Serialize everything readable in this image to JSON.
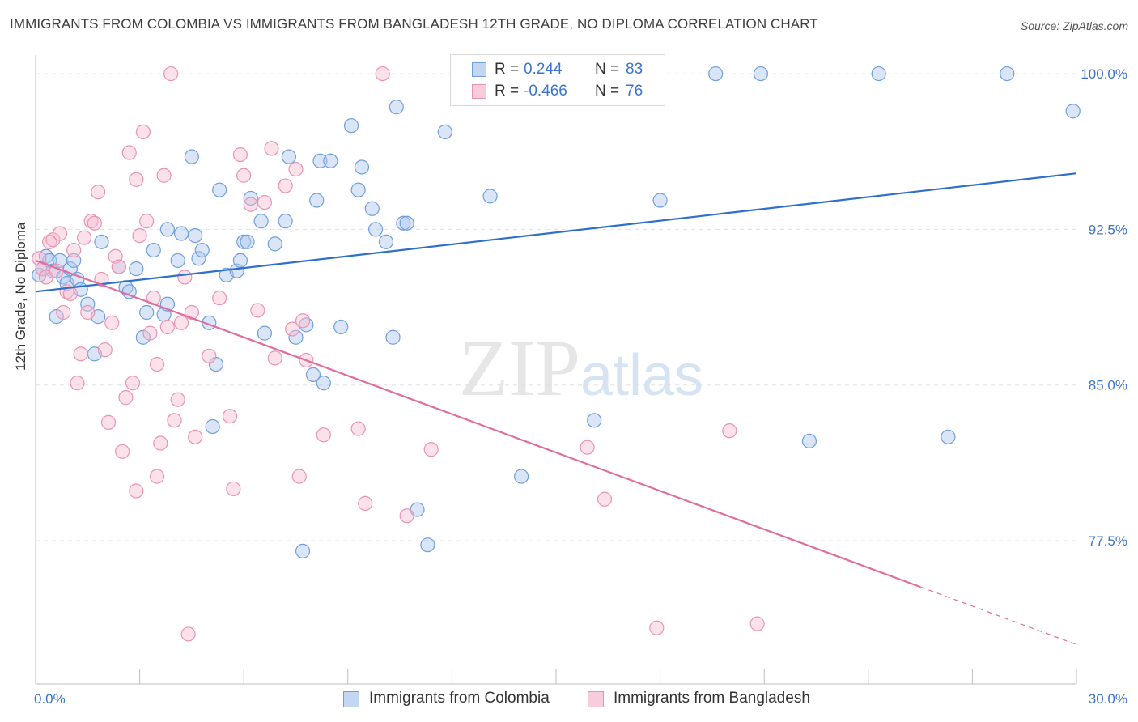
{
  "header": {
    "title": "IMMIGRANTS FROM COLOMBIA VS IMMIGRANTS FROM BANGLADESH 12TH GRADE, NO DIPLOMA CORRELATION CHART",
    "source": "Source: ZipAtlas.com"
  },
  "watermark": "ZIPatlas",
  "legend_top": {
    "colombia": {
      "r_label": "R =",
      "r_value": "0.244",
      "n_label": "N =",
      "n_value": "83"
    },
    "bangladesh": {
      "r_label": "R =",
      "r_value": "-0.466",
      "n_label": "N =",
      "n_value": "76"
    }
  },
  "legend_bottom": {
    "colombia": "Immigrants from Colombia",
    "bangladesh": "Immigrants from Bangladesh"
  },
  "colors": {
    "colombia_fill": "#aec8ee",
    "colombia_stroke": "#6f9fdc",
    "colombia_line": "#2f6fcc",
    "bangladesh_fill": "#f6bcd0",
    "bangladesh_stroke": "#e993b2",
    "bangladesh_line": "#e06d9c",
    "tick_label": "#3b74cc",
    "grid": "#e0e0e0"
  },
  "chart_data": {
    "type": "scatter",
    "title": "IMMIGRANTS FROM COLOMBIA VS IMMIGRANTS FROM BANGLADESH 12TH GRADE, NO DIPLOMA CORRELATION CHART",
    "xlabel": "",
    "ylabel": "12th Grade, No Diploma",
    "xlim": [
      0,
      30
    ],
    "ylim": [
      70.6,
      100.9
    ],
    "x_tick_labels": [
      "0.0%",
      "30.0%"
    ],
    "y_ticks": [
      77.5,
      85.0,
      92.5,
      100.0
    ],
    "y_tick_labels": [
      "77.5%",
      "85.0%",
      "92.5%",
      "100.0%"
    ],
    "grid": true,
    "legend_placement": "bottom",
    "series": [
      {
        "name": "Immigrants from Colombia",
        "R": 0.244,
        "N": 83,
        "trend": {
          "x": [
            0,
            30
          ],
          "y": [
            89.5,
            95.2
          ],
          "dashed_from": null
        },
        "points": [
          [
            0.1,
            90.3
          ],
          [
            0.2,
            90.6
          ],
          [
            0.3,
            91.2
          ],
          [
            0.4,
            91.0
          ],
          [
            0.5,
            90.5
          ],
          [
            0.6,
            88.3
          ],
          [
            0.7,
            91.0
          ],
          [
            0.8,
            90.2
          ],
          [
            0.9,
            89.9
          ],
          [
            1.0,
            90.6
          ],
          [
            1.1,
            91.0
          ],
          [
            1.2,
            90.1
          ],
          [
            1.3,
            89.6
          ],
          [
            1.5,
            88.9
          ],
          [
            1.8,
            88.3
          ],
          [
            1.7,
            86.5
          ],
          [
            1.9,
            91.9
          ],
          [
            2.4,
            90.7
          ],
          [
            2.6,
            89.7
          ],
          [
            2.7,
            89.5
          ],
          [
            2.9,
            90.6
          ],
          [
            3.1,
            87.3
          ],
          [
            3.2,
            88.5
          ],
          [
            3.4,
            91.5
          ],
          [
            3.7,
            88.4
          ],
          [
            3.8,
            92.5
          ],
          [
            3.8,
            88.9
          ],
          [
            4.1,
            91.0
          ],
          [
            4.2,
            92.3
          ],
          [
            4.5,
            96.0
          ],
          [
            4.6,
            92.2
          ],
          [
            4.7,
            91.1
          ],
          [
            4.8,
            91.5
          ],
          [
            5.0,
            88.0
          ],
          [
            5.1,
            83.0
          ],
          [
            5.2,
            86.0
          ],
          [
            5.3,
            94.4
          ],
          [
            5.5,
            90.3
          ],
          [
            5.8,
            90.5
          ],
          [
            5.9,
            91.0
          ],
          [
            6.0,
            91.9
          ],
          [
            6.1,
            91.9
          ],
          [
            6.2,
            94.0
          ],
          [
            6.5,
            92.9
          ],
          [
            6.6,
            87.5
          ],
          [
            6.9,
            91.8
          ],
          [
            7.2,
            92.9
          ],
          [
            7.3,
            96.0
          ],
          [
            7.5,
            87.3
          ],
          [
            7.7,
            77.0
          ],
          [
            7.8,
            87.9
          ],
          [
            8.0,
            85.5
          ],
          [
            8.1,
            93.9
          ],
          [
            8.2,
            95.8
          ],
          [
            8.3,
            85.1
          ],
          [
            8.5,
            95.8
          ],
          [
            8.8,
            87.8
          ],
          [
            9.1,
            97.5
          ],
          [
            9.3,
            94.4
          ],
          [
            9.4,
            95.5
          ],
          [
            9.7,
            93.5
          ],
          [
            9.8,
            92.5
          ],
          [
            10.1,
            91.9
          ],
          [
            10.3,
            87.3
          ],
          [
            10.4,
            98.4
          ],
          [
            10.6,
            92.8
          ],
          [
            10.7,
            92.8
          ],
          [
            11.0,
            79.0
          ],
          [
            11.3,
            77.3
          ],
          [
            11.8,
            97.2
          ],
          [
            13.1,
            94.1
          ],
          [
            14.0,
            80.6
          ],
          [
            15.0,
            100.0
          ],
          [
            16.1,
            83.3
          ],
          [
            18.0,
            93.9
          ],
          [
            19.6,
            100.0
          ],
          [
            20.9,
            100.0
          ],
          [
            22.3,
            82.3
          ],
          [
            24.3,
            100.0
          ],
          [
            26.3,
            82.5
          ],
          [
            28.0,
            100.0
          ],
          [
            29.9,
            98.2
          ],
          [
            15.1,
            100.0
          ]
        ]
      },
      {
        "name": "Immigrants from Bangladesh",
        "R": -0.466,
        "N": 76,
        "trend": {
          "x": [
            0,
            30
          ],
          "y": [
            91.0,
            72.5
          ],
          "dashed_from": 25.5
        },
        "points": [
          [
            0.1,
            91.1
          ],
          [
            0.2,
            90.6
          ],
          [
            0.3,
            90.2
          ],
          [
            0.4,
            91.9
          ],
          [
            0.5,
            92.0
          ],
          [
            0.6,
            90.5
          ],
          [
            0.7,
            92.3
          ],
          [
            0.8,
            88.5
          ],
          [
            0.9,
            89.5
          ],
          [
            1.0,
            89.4
          ],
          [
            1.1,
            91.5
          ],
          [
            1.2,
            85.1
          ],
          [
            1.3,
            86.5
          ],
          [
            1.4,
            92.1
          ],
          [
            1.5,
            88.5
          ],
          [
            1.6,
            92.9
          ],
          [
            1.7,
            92.8
          ],
          [
            1.8,
            94.3
          ],
          [
            1.9,
            90.1
          ],
          [
            2.0,
            86.7
          ],
          [
            2.1,
            83.2
          ],
          [
            2.2,
            88.0
          ],
          [
            2.3,
            91.2
          ],
          [
            2.4,
            90.7
          ],
          [
            2.5,
            81.8
          ],
          [
            2.6,
            84.4
          ],
          [
            2.7,
            96.2
          ],
          [
            2.8,
            85.1
          ],
          [
            2.9,
            94.9
          ],
          [
            2.9,
            79.9
          ],
          [
            3.0,
            92.2
          ],
          [
            3.1,
            97.2
          ],
          [
            3.2,
            92.9
          ],
          [
            3.3,
            87.5
          ],
          [
            3.4,
            89.2
          ],
          [
            3.5,
            80.6
          ],
          [
            3.6,
            82.2
          ],
          [
            3.7,
            95.1
          ],
          [
            3.8,
            87.8
          ],
          [
            3.9,
            100.0
          ],
          [
            4.0,
            83.3
          ],
          [
            4.1,
            84.3
          ],
          [
            4.2,
            88.0
          ],
          [
            4.3,
            90.2
          ],
          [
            4.4,
            73.0
          ],
          [
            4.5,
            88.5
          ],
          [
            4.6,
            82.5
          ],
          [
            5.0,
            86.4
          ],
          [
            5.3,
            89.2
          ],
          [
            5.6,
            83.5
          ],
          [
            5.7,
            80.0
          ],
          [
            5.9,
            96.1
          ],
          [
            6.0,
            95.1
          ],
          [
            6.2,
            93.7
          ],
          [
            6.4,
            88.6
          ],
          [
            6.6,
            93.8
          ],
          [
            6.8,
            96.4
          ],
          [
            6.9,
            86.3
          ],
          [
            7.2,
            94.6
          ],
          [
            7.4,
            87.7
          ],
          [
            7.5,
            95.4
          ],
          [
            7.6,
            80.6
          ],
          [
            7.7,
            88.1
          ],
          [
            7.8,
            86.2
          ],
          [
            8.3,
            82.6
          ],
          [
            9.3,
            82.9
          ],
          [
            9.5,
            79.3
          ],
          [
            10.0,
            100.0
          ],
          [
            10.7,
            78.7
          ],
          [
            11.4,
            81.9
          ],
          [
            15.9,
            82.0
          ],
          [
            16.4,
            79.5
          ],
          [
            17.9,
            73.3
          ],
          [
            20.0,
            82.8
          ],
          [
            20.8,
            73.5
          ],
          [
            3.5,
            86.0
          ]
        ]
      }
    ]
  }
}
